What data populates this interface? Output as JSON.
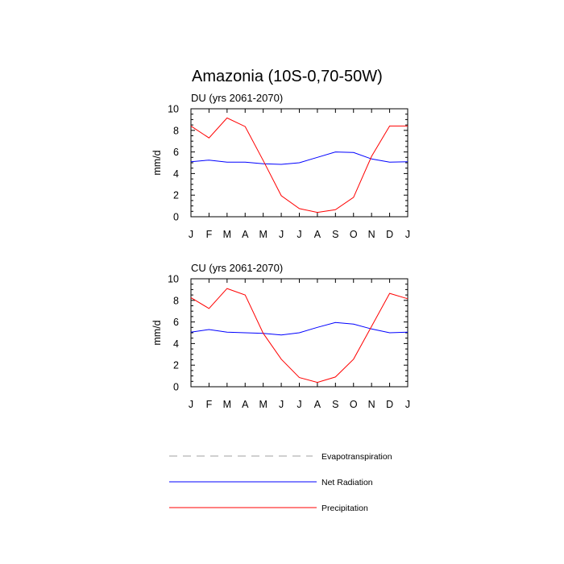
{
  "title": "Amazonia (10S-0,70-50W)",
  "chart_data": [
    {
      "type": "line",
      "subtitle": "DU (yrs 2061-2070)",
      "ylabel": "mm/d",
      "xlabel": "",
      "ylim": [
        0,
        10
      ],
      "yticks": [
        "0",
        "2",
        "4",
        "6",
        "8",
        "10"
      ],
      "categories": [
        "J",
        "F",
        "M",
        "A",
        "M",
        "J",
        "J",
        "A",
        "S",
        "O",
        "N",
        "D",
        "J"
      ],
      "series": [
        {
          "name": "Net Radiation",
          "color": "#0000ff",
          "values": [
            5.1,
            5.25,
            5.05,
            5.05,
            4.9,
            4.85,
            5.0,
            5.5,
            6.0,
            5.95,
            5.35,
            5.05,
            5.1
          ]
        },
        {
          "name": "Precipitation",
          "color": "#ff0000",
          "values": [
            8.4,
            7.3,
            9.15,
            8.35,
            5.2,
            1.95,
            0.75,
            0.4,
            0.65,
            1.8,
            5.6,
            8.4,
            8.4
          ]
        }
      ]
    },
    {
      "type": "line",
      "subtitle": "CU (yrs 2061-2070)",
      "ylabel": "mm/d",
      "xlabel": "",
      "ylim": [
        0,
        10
      ],
      "yticks": [
        "0",
        "2",
        "4",
        "6",
        "8",
        "10"
      ],
      "categories": [
        "J",
        "F",
        "M",
        "A",
        "M",
        "J",
        "J",
        "A",
        "S",
        "O",
        "N",
        "D",
        "J"
      ],
      "series": [
        {
          "name": "Net Radiation",
          "color": "#0000ff",
          "values": [
            5.05,
            5.3,
            5.05,
            5.0,
            4.95,
            4.8,
            5.0,
            5.5,
            5.95,
            5.8,
            5.35,
            5.0,
            5.05
          ]
        },
        {
          "name": "Precipitation",
          "color": "#ff0000",
          "values": [
            8.25,
            7.25,
            9.1,
            8.5,
            4.95,
            2.55,
            0.85,
            0.4,
            0.9,
            2.55,
            5.6,
            8.65,
            8.15
          ]
        }
      ]
    }
  ],
  "legend": [
    {
      "label": "Evapotranspiration",
      "style": "dashed",
      "color": "#a0a0a0"
    },
    {
      "label": "Net Radiation",
      "style": "solid",
      "color": "#0000ff"
    },
    {
      "label": "Precipitation",
      "style": "solid",
      "color": "#ff0000"
    }
  ]
}
